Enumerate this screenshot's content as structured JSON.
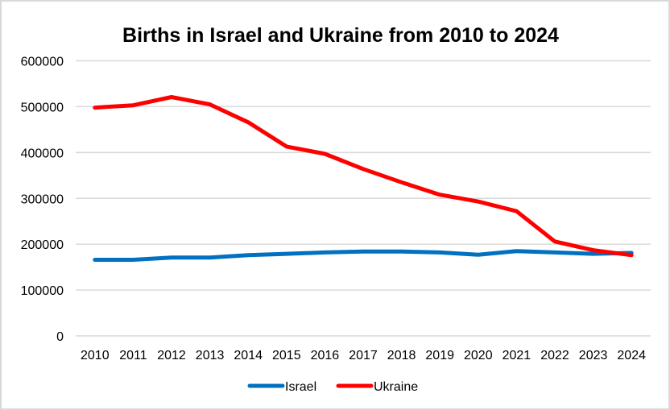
{
  "chart_data": {
    "type": "line",
    "title": "Births in Israel and Ukraine from 2010 to 2024",
    "xlabel": "",
    "ylabel": "",
    "categories": [
      "2010",
      "2011",
      "2012",
      "2013",
      "2014",
      "2015",
      "2016",
      "2017",
      "2018",
      "2019",
      "2020",
      "2021",
      "2022",
      "2023",
      "2024"
    ],
    "ylim": [
      0,
      600000
    ],
    "yticks": [
      0,
      100000,
      200000,
      300000,
      400000,
      500000,
      600000
    ],
    "ytick_labels": [
      "0",
      "100000",
      "200000",
      "300000",
      "400000",
      "500000",
      "600000"
    ],
    "grid": true,
    "legend_position": "bottom",
    "series": [
      {
        "name": "Israel",
        "color": "#0070c0",
        "values": [
          166000,
          166000,
          171000,
          171000,
          176000,
          179000,
          182000,
          184000,
          184000,
          182000,
          177000,
          185000,
          182000,
          179000,
          181000
        ]
      },
      {
        "name": "Ukraine",
        "color": "#ff0000",
        "values": [
          498000,
          503000,
          521000,
          505000,
          466000,
          413000,
          397000,
          364000,
          335000,
          308000,
          293000,
          272000,
          206000,
          187000,
          176000
        ]
      }
    ]
  }
}
